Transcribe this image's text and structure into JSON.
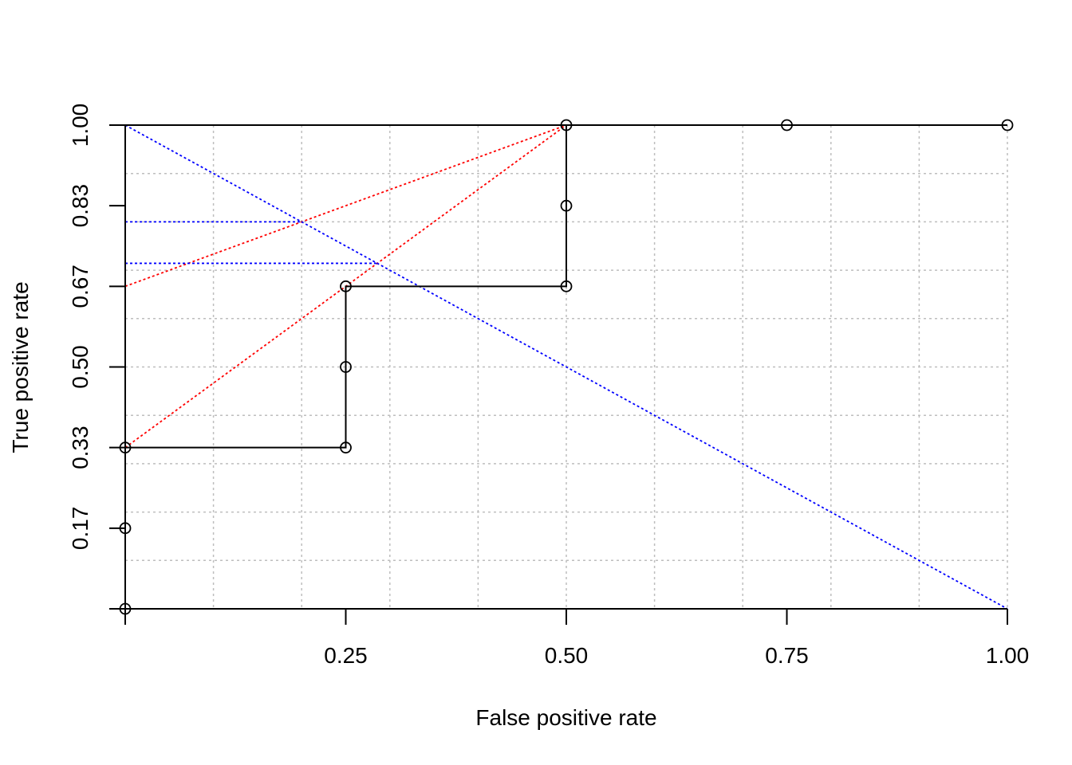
{
  "chart_data": {
    "type": "line",
    "title": "",
    "xlabel": "False positive rate",
    "ylabel": "True positive rate",
    "xlim": [
      0,
      1
    ],
    "ylim": [
      0,
      1
    ],
    "x_ticks": [
      0.25,
      0.5,
      0.75,
      1.0
    ],
    "x_tick_labels": [
      "0.25",
      "0.50",
      "0.75",
      "1.00"
    ],
    "y_ticks": [
      0.1667,
      0.3333,
      0.5,
      0.6667,
      0.8333,
      1.0
    ],
    "y_tick_labels": [
      "0.17",
      "0.33",
      "0.50",
      "0.67",
      "0.83",
      "1.00"
    ],
    "grid": true,
    "grid_x": [
      0.1,
      0.2,
      0.3,
      0.4,
      0.5,
      0.6,
      0.7,
      0.8,
      0.9,
      1.0
    ],
    "grid_y": [
      0.1,
      0.2,
      0.3,
      0.4,
      0.5,
      0.6,
      0.7,
      0.8,
      0.9,
      1.0
    ],
    "roc": {
      "x": [
        0,
        0,
        0,
        0.25,
        0.25,
        0.25,
        0.5,
        0.5,
        0.5,
        0.75,
        1.0
      ],
      "y": [
        0,
        0.1667,
        0.3333,
        0.3333,
        0.5,
        0.6667,
        0.6667,
        0.8333,
        1.0,
        1.0,
        1.0
      ],
      "color": "#000000"
    },
    "reference_lines": [
      {
        "color": "#ff0000",
        "x": [
          0,
          0.5
        ],
        "y": [
          0.6667,
          1.0
        ]
      },
      {
        "color": "#ff0000",
        "x": [
          0,
          0.5
        ],
        "y": [
          0.3333,
          1.0
        ]
      },
      {
        "color": "#0000ff",
        "x": [
          0,
          1.0
        ],
        "y": [
          1.0,
          0
        ]
      },
      {
        "color": "#0000ff",
        "x": [
          0,
          0.2
        ],
        "y": [
          0.8,
          0.8
        ]
      },
      {
        "color": "#0000ff",
        "x": [
          0,
          0.2857
        ],
        "y": [
          0.7143,
          0.7143
        ]
      }
    ],
    "grid_color": "#bebebe"
  }
}
